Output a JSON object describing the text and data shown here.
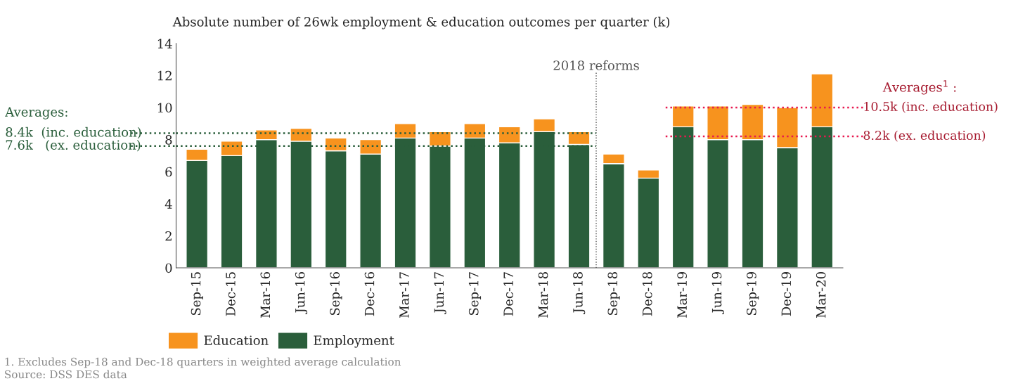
{
  "chart_data": {
    "type": "bar",
    "title": "Absolute number of 26wk employment & education outcomes per quarter (k)",
    "categories": [
      "Sep-15",
      "Dec-15",
      "Mar-16",
      "Jun-16",
      "Sep-16",
      "Dec-16",
      "Mar-17",
      "Jun-17",
      "Sep-17",
      "Dec-17",
      "Mar-18",
      "Jun-18",
      "Sep-18",
      "Dec-18",
      "Mar-19",
      "Jun-19",
      "Sep-19",
      "Dec-19",
      "Mar-20"
    ],
    "stacked": true,
    "series": [
      {
        "name": "Employment",
        "color": "#2a5e3b",
        "values": [
          6.7,
          7.0,
          8.0,
          7.9,
          7.3,
          7.1,
          8.1,
          7.6,
          8.1,
          7.8,
          8.5,
          7.7,
          6.5,
          5.6,
          8.8,
          8.0,
          8.0,
          7.5,
          8.8
        ]
      },
      {
        "name": "Education",
        "color": "#f7931e",
        "values": [
          0.7,
          0.9,
          0.6,
          0.8,
          0.8,
          0.9,
          0.9,
          0.9,
          0.9,
          1.0,
          0.8,
          0.8,
          0.6,
          0.5,
          1.3,
          2.1,
          2.2,
          2.5,
          3.3
        ]
      }
    ],
    "ylim": [
      0,
      14
    ],
    "yticks": [
      0,
      2,
      4,
      6,
      8,
      10,
      12,
      14
    ],
    "grid": false,
    "legend": "bottom left",
    "ref_lines": [
      {
        "axis": "y",
        "value": 8.4,
        "label": "8.4k  (inc. education)",
        "color": "#2a5e3b",
        "line_style": "dotted"
      },
      {
        "axis": "y",
        "value": 7.6,
        "label": "7.6k   (ex. education)",
        "color": "#2a5e3b",
        "line_style": "dotted"
      },
      {
        "axis": "y",
        "value": 10.0,
        "label": "10.5k (inc. education)",
        "color": "#e8194f",
        "line_style": "dotted"
      },
      {
        "axis": "y",
        "value": 8.2,
        "label": "8.2k (ex. education)",
        "color": "#e8194f",
        "line_style": "dotted"
      }
    ],
    "annotations": [
      "2018 reforms",
      "Averages:",
      "Averages$^{1}$ :",
      "1. Excludes Sep-18 and Dec-18 quarters in weighted average calculation",
      "Source: DSS DES data"
    ]
  }
}
